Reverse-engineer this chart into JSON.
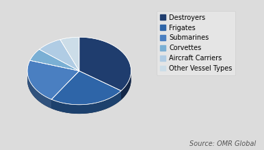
{
  "labels": [
    "Destroyers",
    "Frigates",
    "Submarines",
    "Corvettes",
    "Aircraft Carriers",
    "Other Vessel Types"
  ],
  "values": [
    35,
    24,
    21,
    6,
    8,
    6
  ],
  "colors": [
    "#1f3d6e",
    "#2e65a8",
    "#4a7fc1",
    "#7aafd4",
    "#b0cce4",
    "#ccdde8"
  ],
  "edge_color": "white",
  "background_color": "#dcdcdc",
  "source_text": "Source: OMR Global",
  "legend_fontsize": 7,
  "source_fontsize": 7,
  "start_angle": 90,
  "depth": 0.07,
  "shadow_darken": 0.5
}
